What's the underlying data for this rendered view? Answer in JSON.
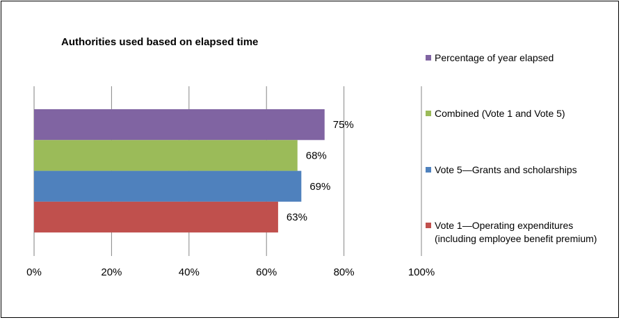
{
  "chart_data": {
    "type": "bar",
    "orientation": "horizontal",
    "title": "Authorities used based on elapsed time",
    "xlabel": "",
    "ylabel": "",
    "xlim": [
      0,
      100
    ],
    "x_ticks": [
      "0%",
      "20%",
      "40%",
      "60%",
      "80%",
      "100%"
    ],
    "grid": "vertical",
    "legend_position": "right",
    "bars": [
      {
        "name": "Percentage of year elapsed",
        "value": 75,
        "label": "75%",
        "color": "#8064A2"
      },
      {
        "name": "Combined (Vote 1 and Vote 5)",
        "value": 68,
        "label": "68%",
        "color": "#9BBB59"
      },
      {
        "name": "Vote 5—Grants and scholarships",
        "value": 69,
        "label": "69%",
        "color": "#4F81BD"
      },
      {
        "name": "Vote 1—Operating expenditures\n(including employee benefit premium)",
        "value": 63,
        "label": "63%",
        "color": "#C0504D"
      }
    ]
  }
}
